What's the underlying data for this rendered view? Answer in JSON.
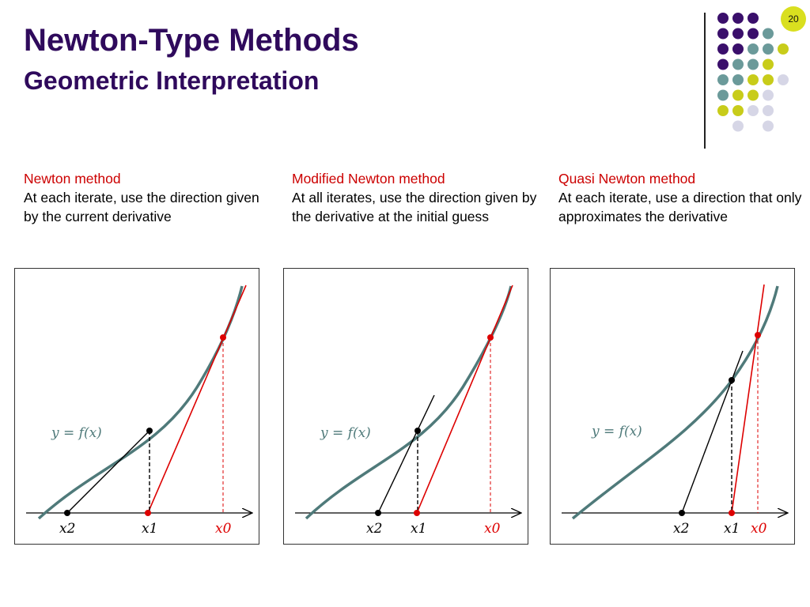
{
  "slide": {
    "title": "Newton-Type Methods",
    "subtitle": "Geometric Interpretation",
    "page_number": "20"
  },
  "columns": [
    {
      "heading": "Newton method",
      "text": "At each iterate, use the direction given by the current derivative"
    },
    {
      "heading": "Modified Newton method",
      "text": "At all iterates, use the direction given by the derivative at the initial guess"
    },
    {
      "heading": "Quasi Newton method",
      "text": "At each iterate, use a direction that only approximates the derivative"
    }
  ],
  "diagrams": [
    {
      "function_label": "y = f(x)",
      "x_labels": {
        "x0": "x0",
        "x1": "x1",
        "x2": "x2"
      }
    },
    {
      "function_label": "y = f(x)",
      "x_labels": {
        "x0": "x0",
        "x1": "x1",
        "x2": "x2"
      }
    },
    {
      "function_label": "y = f(x)",
      "x_labels": {
        "x0": "x0",
        "x1": "x1",
        "x2": "x2"
      }
    }
  ],
  "colors": {
    "title": "#2f0a5c",
    "heading": "#cc0000",
    "curve": "#4f7a7a",
    "tangent_first": "#dd0000",
    "tangent_second": "#000000",
    "dot_purple": "#3a0f6b",
    "dot_teal": "#6b9a9a",
    "dot_yellow": "#c8cc1a",
    "dot_lavender": "#d6d6e6",
    "page_badge": "#d9df1f"
  },
  "decoration_dots": [
    [
      "purple",
      "purple",
      "purple",
      "none",
      "none"
    ],
    [
      "purple",
      "purple",
      "purple",
      "teal",
      "none"
    ],
    [
      "purple",
      "purple",
      "teal",
      "teal",
      "yellow"
    ],
    [
      "purple",
      "teal",
      "teal",
      "yellow",
      "none"
    ],
    [
      "teal",
      "teal",
      "yellow",
      "yellow",
      "lavender"
    ],
    [
      "teal",
      "yellow",
      "yellow",
      "lavender",
      "none"
    ],
    [
      "yellow",
      "yellow",
      "lavender",
      "lavender",
      "none"
    ],
    [
      "none",
      "lavender",
      "none",
      "lavender",
      "none"
    ]
  ]
}
